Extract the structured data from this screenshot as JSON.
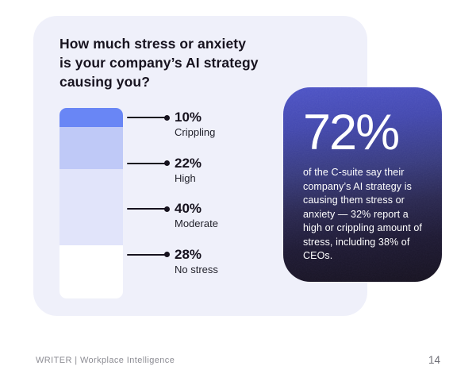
{
  "question_card": {
    "title": "How much stress or anxiety is your company's AI strategy causing you?",
    "title_lines": [
      "How much stress or anxiety",
      "is your company’s AI strategy",
      "causing you?"
    ]
  },
  "chart_data": {
    "type": "bar",
    "subtype": "stacked-single-column",
    "orientation": "vertical",
    "title": "How much stress or anxiety is your company's AI strategy causing you?",
    "categories": [
      "Crippling",
      "High",
      "Moderate",
      "No stress"
    ],
    "values": [
      10,
      22,
      40,
      28
    ],
    "value_labels": [
      "10%",
      "22%",
      "40%",
      "28%"
    ],
    "unit": "%",
    "segment_colors": [
      "#6986f5",
      "#bfc9f7",
      "#e1e4fa",
      "#ffffff"
    ],
    "legend_position": "right-callout-labels",
    "grid": false
  },
  "callout_card": {
    "stat": "72%",
    "description": "of the C-suite say their company’s AI strategy is causing them stress or anxiety — 32% report a high or crippling amount of stress, including 38% of CEOs."
  },
  "footer": {
    "brand": "WRITER | Workplace Intelligence",
    "page_number": "14"
  },
  "colors": {
    "page_background": "#ffffff",
    "question_card_background": "#eff0fa",
    "callout_gradient_top": "#4d53c6",
    "callout_gradient_bottom": "#171320",
    "text_dark": "#17131f",
    "text_muted": "#8d8d94",
    "connector": "#16121e"
  }
}
